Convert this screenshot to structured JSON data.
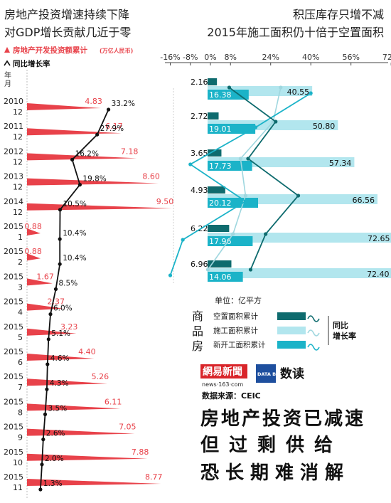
{
  "title_left": [
    "房地产投资增速持续下降",
    "对GDP增长贡献几近于零"
  ],
  "title_right": [
    "积压库存只增不减",
    "2015年施工面积仍十倍于空置面积"
  ],
  "legend_left": {
    "invest": "房地产开发投资额累计",
    "invest_unit": "(万亿人民币)",
    "growth": "同比增长率"
  },
  "year_month_label": [
    "年",
    "月"
  ],
  "unit_label": "单位：亿平方",
  "legend_right": {
    "vacant": "空置面积累计",
    "construction": "施工面积累计",
    "new_start": "新开工面积累计",
    "side_chars": [
      "商",
      "品",
      "房"
    ],
    "growth_label": [
      "同比",
      "增长率"
    ]
  },
  "brand": {
    "netease": "網易新聞",
    "netease_sub": "news·163·com",
    "datablog": "DATA BLOG",
    "shudu": "数读"
  },
  "source": "数据来源：CEIC",
  "headline": [
    "房地产投资已减速",
    "但过剩供给",
    "恐长期难消解"
  ],
  "colors": {
    "invest": "#e8424a",
    "growth_line": "#111111",
    "vacant": "#0e6b6e",
    "construction": "#b2e6ee",
    "new_start": "#1bb3c8",
    "construction_line": "#9fd7df"
  },
  "chart_data": [
    {
      "type": "bar",
      "categories": [
        {
          "year": "2010",
          "month": "12"
        },
        {
          "year": "2011",
          "month": "12"
        },
        {
          "year": "2012",
          "month": "12"
        },
        {
          "year": "2013",
          "month": "12"
        },
        {
          "year": "2014",
          "month": "12"
        },
        {
          "year": "2015",
          "month": "1"
        },
        {
          "year": "2015",
          "month": "2"
        },
        {
          "year": "2015",
          "month": "3"
        },
        {
          "year": "2015",
          "month": "4"
        },
        {
          "year": "2015",
          "month": "5"
        },
        {
          "year": "2015",
          "month": "6"
        },
        {
          "year": "2015",
          "month": "7"
        },
        {
          "year": "2015",
          "month": "8"
        },
        {
          "year": "2015",
          "month": "9"
        },
        {
          "year": "2015",
          "month": "10"
        },
        {
          "year": "2015",
          "month": "11"
        }
      ],
      "series": [
        {
          "name": "房地产开发投资额累计",
          "values": [
            4.83,
            6.17,
            7.18,
            8.6,
            9.5,
            0.88,
            0.88,
            1.67,
            2.37,
            3.23,
            4.4,
            5.26,
            6.11,
            7.05,
            7.88,
            8.77
          ],
          "labels": [
            "4.83",
            "6.17",
            "7.18",
            "8.60",
            "9.50",
            "0.88",
            "0.88",
            "1.67",
            "2.37",
            "3.23",
            "4.40",
            "5.26",
            "6.11",
            "7.05",
            "7.88",
            "8.77"
          ]
        },
        {
          "name": "同比增长率",
          "values": [
            33.2,
            27.9,
            16.2,
            19.8,
            10.5,
            10.4,
            10.4,
            8.5,
            6.0,
            5.1,
            4.6,
            4.3,
            3.5,
            2.6,
            2.0,
            1.3
          ],
          "labels": [
            "33.2%",
            "27.9%",
            "16.2%",
            "19.8%",
            "10.5%",
            "10.4%",
            "10.4%",
            "8.5%",
            "6.0%",
            "5.1%",
            "4.6%",
            "4.3%",
            "3.5%",
            "2.6%",
            "2.0%",
            "1.3%"
          ]
        }
      ]
    },
    {
      "type": "bar",
      "categories": [
        "2010",
        "2011",
        "2012",
        "2013",
        "2014",
        "2015"
      ],
      "x_ticks": [
        "-16%",
        "-8%",
        "0%",
        "8%",
        "24%",
        "40%",
        "56%",
        "72%"
      ],
      "x_tick_values": [
        -16,
        -8,
        0,
        8,
        24,
        40,
        56,
        72
      ],
      "series": [
        {
          "name": "空置面积累计",
          "values": [
            2.16,
            2.72,
            3.65,
            4.93,
            6.22,
            6.96
          ],
          "labels": [
            "2.16",
            "2.72",
            "3.65",
            "4.93",
            "6.22",
            "6.96"
          ]
        },
        {
          "name": "施工面积累计",
          "values": [
            40.55,
            50.8,
            57.34,
            66.56,
            72.65,
            72.4
          ],
          "labels": [
            "40.55",
            "50.80",
            "57.34",
            "66.56",
            "72.65",
            "72.40"
          ]
        },
        {
          "name": "新开工面积累计",
          "values": [
            16.38,
            19.01,
            17.73,
            20.12,
            17.96,
            14.06
          ],
          "labels": [
            "16.38",
            "19.01",
            "17.73",
            "20.12",
            "17.96",
            "14.06"
          ]
        }
      ],
      "growth_series": [
        {
          "name": "空置面积累计 同比增长率",
          "values": [
            7.5,
            26,
            15,
            35,
            22,
            16
          ]
        },
        {
          "name": "施工面积累计 同比增长率",
          "values": [
            28,
            25,
            12,
            14,
            9,
            -1
          ]
        },
        {
          "name": "新开工面积累计 同比增长率",
          "values": [
            40,
            18,
            -8,
            14,
            -11,
            -16
          ]
        }
      ]
    }
  ]
}
